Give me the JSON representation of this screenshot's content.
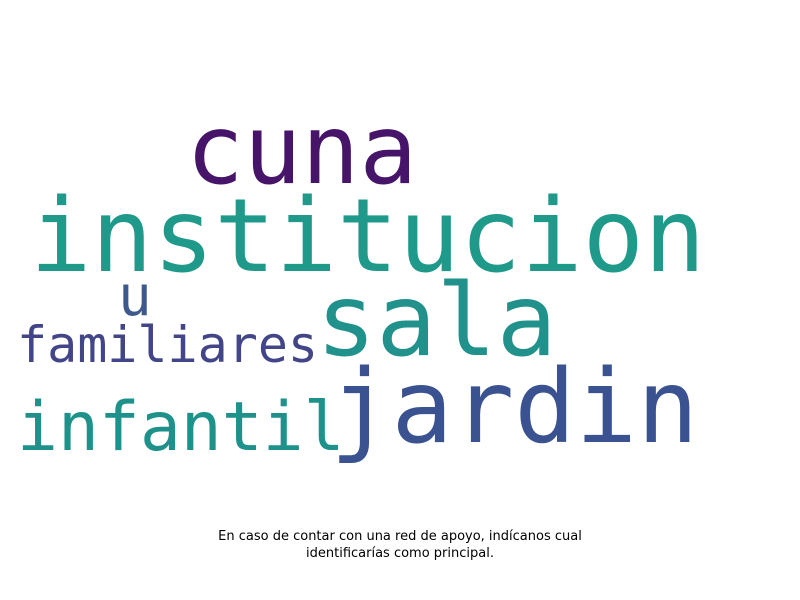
{
  "wordcloud": {
    "words": [
      {
        "text": "cuna",
        "color": "#461468"
      },
      {
        "text": "institucion",
        "color": "#1f9a8a"
      },
      {
        "text": "sala",
        "color": "#21918c"
      },
      {
        "text": "u",
        "color": "#3e5a8c"
      },
      {
        "text": "familiares",
        "color": "#424688"
      },
      {
        "text": "jardin",
        "color": "#3b5290"
      },
      {
        "text": "infantil",
        "color": "#1e928a"
      }
    ]
  },
  "caption": {
    "line1": "En caso de contar con una red de apoyo, indícanos cual",
    "line2": "identificarías como principal."
  }
}
